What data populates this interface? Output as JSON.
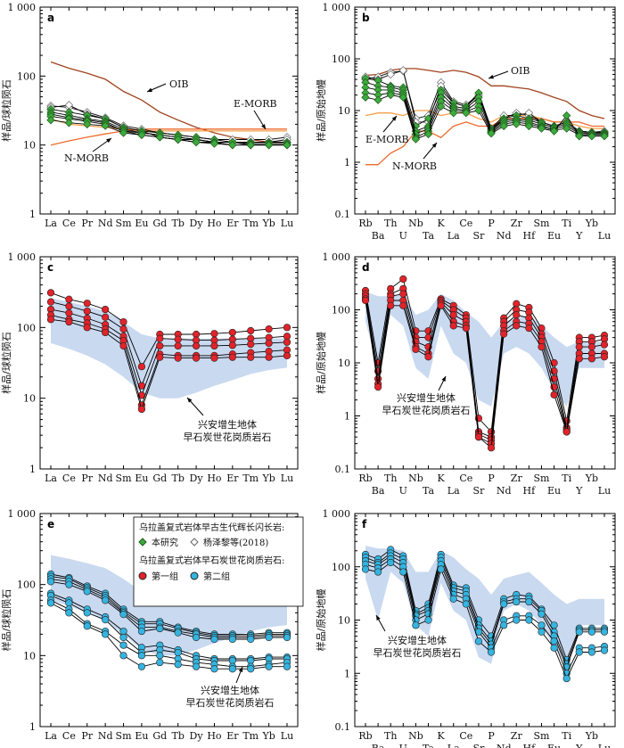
{
  "ylabel_chondrite": "样品/球粒陨石",
  "ylabel_mantle": "样品/原始地幔",
  "ree_elements": [
    "La",
    "Ce",
    "Pr",
    "Nd",
    "Sm",
    "Eu",
    "Gd",
    "Tb",
    "Dy",
    "Ho",
    "Er",
    "Tm",
    "Yb",
    "Lu"
  ],
  "tr_elements": [
    "Rb",
    "Ba",
    "Th",
    "U",
    "Nb",
    "Ta",
    "K",
    "La",
    "Ce",
    "Sr",
    "P",
    "Nd",
    "Zr",
    "Hf",
    "Sm",
    "Eu",
    "Ti",
    "Y",
    "Yb",
    "Lu"
  ],
  "colors": {
    "green": "#3dab3d",
    "red": "#e2232a",
    "cyan": "#35b4e0",
    "field": "#c9d9f0",
    "oib": "#a0421d",
    "emorb": "#f5a04a",
    "nmorb": "#ee6a2a"
  },
  "legend": {
    "title1": "乌拉盖复式岩体早古生代辉长闪长岩:",
    "this_study": "本研究",
    "yang": "杨泽黎等(2018)",
    "title2": "乌拉盖复式岩体早石炭世花岗质岩石:",
    "group1": "第一组",
    "group2": "第二组"
  },
  "field_label": [
    "兴安增生地体",
    "早石炭世花岗质岩石"
  ],
  "chart_data": [
    {
      "panel": "a",
      "type": "line",
      "ylabel": "样品/球粒陨石",
      "yscale": "log",
      "ylim": [
        1,
        1000
      ],
      "yticks": [
        "1",
        "10",
        "100",
        "1 000"
      ],
      "categories": [
        "La",
        "Ce",
        "Pr",
        "Nd",
        "Sm",
        "Eu",
        "Gd",
        "Tb",
        "Dy",
        "Ho",
        "Er",
        "Tm",
        "Yb",
        "Lu"
      ],
      "reference": [
        {
          "name": "OIB",
          "values": [
            160,
            130,
            110,
            90,
            60,
            45,
            30,
            23,
            18,
            15,
            13,
            12,
            11,
            11
          ]
        },
        {
          "name": "E-MORB",
          "values": [
            24,
            20,
            19,
            18,
            17,
            16,
            16,
            16,
            16,
            16,
            16,
            16,
            16,
            16
          ]
        },
        {
          "name": "N-MORB",
          "values": [
            10,
            11.5,
            13,
            14.5,
            16,
            17,
            17,
            17,
            17,
            17,
            17,
            17,
            17,
            17
          ]
        }
      ],
      "series_green": [
        [
          33,
          30,
          27,
          24,
          18,
          16,
          15,
          14,
          13,
          12,
          11,
          11,
          11,
          11
        ],
        [
          30,
          27,
          24,
          22,
          17,
          15,
          14,
          13,
          12,
          11,
          11,
          10.5,
          10.5,
          10.5
        ],
        [
          28,
          25,
          23,
          21,
          16,
          15,
          14,
          13,
          12,
          11,
          11,
          10,
          10,
          10
        ],
        [
          26,
          24,
          22,
          20,
          16,
          14,
          13,
          12,
          11,
          11,
          10,
          10,
          10,
          10
        ],
        [
          23,
          21,
          20,
          19,
          15,
          14,
          13,
          12,
          11,
          10.5,
          10,
          10,
          10,
          10
        ]
      ],
      "series_gray": [
        [
          37,
          35,
          30,
          25,
          19,
          17,
          15,
          14,
          13,
          12,
          12,
          12,
          12,
          13
        ],
        [
          35,
          38,
          28,
          24,
          18,
          16,
          13,
          12,
          12,
          11,
          11,
          11,
          11,
          12
        ]
      ]
    },
    {
      "panel": "b",
      "type": "line",
      "ylabel": "样品/原始地幔",
      "yscale": "log",
      "ylim": [
        0.1,
        1000
      ],
      "yticks": [
        "0.1",
        "1",
        "10",
        "100",
        "1 000"
      ],
      "categories": [
        "Rb",
        "Ba",
        "Th",
        "U",
        "Nb",
        "Ta",
        "K",
        "La",
        "Ce",
        "Sr",
        "P",
        "Nd",
        "Zr",
        "Hf",
        "Sm",
        "Eu",
        "Ti",
        "Y",
        "Yb",
        "Lu"
      ],
      "reference": [
        {
          "name": "OIB",
          "values": [
            48,
            50,
            60,
            65,
            65,
            60,
            55,
            60,
            55,
            45,
            30,
            30,
            28,
            26,
            22,
            18,
            15,
            10,
            8,
            7
          ]
        },
        {
          "name": "E-MORB",
          "values": [
            8,
            9,
            9,
            8,
            10,
            10,
            8,
            9,
            9,
            7,
            6,
            8,
            8,
            8,
            7,
            6,
            6,
            5,
            4.5,
            4.5
          ]
        },
        {
          "name": "N-MORB",
          "values": [
            0.9,
            0.9,
            1.5,
            2,
            4,
            4,
            3,
            5,
            6,
            5,
            5,
            7,
            7,
            7,
            7,
            6,
            6,
            6,
            5,
            5
          ]
        }
      ],
      "series_green": [
        [
          42,
          38,
          30,
          28,
          5,
          7,
          25,
          14,
          12,
          22,
          4.5,
          7,
          8,
          7,
          6,
          5,
          6,
          4,
          3.8,
          3.8
        ],
        [
          35,
          30,
          28,
          25,
          4,
          5,
          22,
          12,
          11,
          18,
          4.2,
          6.5,
          7,
          6.5,
          5.5,
          4.8,
          5.5,
          3.8,
          3.6,
          3.6
        ],
        [
          28,
          25,
          25,
          22,
          3.5,
          4.5,
          18,
          11,
          10,
          15,
          4,
          6,
          6.5,
          6,
          5,
          4.5,
          5,
          3.6,
          3.5,
          3.5
        ],
        [
          22,
          20,
          22,
          20,
          3,
          4,
          15,
          10,
          9.5,
          12,
          3.8,
          5.5,
          6,
          5.5,
          4.8,
          4.2,
          4.5,
          3.4,
          3.3,
          3.3
        ],
        [
          18,
          16,
          20,
          18,
          2.8,
          3.5,
          12,
          9,
          9,
          10,
          3.6,
          5,
          5.5,
          5,
          4.5,
          4,
          8,
          3.2,
          3.2,
          3.2
        ]
      ],
      "series_gray": [
        [
          40,
          45,
          55,
          58,
          7,
          8,
          35,
          15,
          13,
          20,
          4.2,
          7,
          9,
          8,
          6,
          5,
          6,
          4,
          3.8,
          3.8
        ],
        [
          45,
          40,
          50,
          60,
          6,
          6,
          30,
          14,
          12,
          20,
          4.5,
          8,
          8,
          9,
          6,
          5,
          6,
          4,
          3.8,
          4
        ]
      ]
    },
    {
      "panel": "c",
      "type": "line",
      "ylabel": "样品/球粒陨石",
      "yscale": "log",
      "ylim": [
        1,
        1000
      ],
      "yticks": [
        "1",
        "10",
        "100",
        "1 000"
      ],
      "categories": [
        "La",
        "Ce",
        "Pr",
        "Nd",
        "Sm",
        "Eu",
        "Gd",
        "Tb",
        "Dy",
        "Ho",
        "Er",
        "Tm",
        "Yb",
        "Lu"
      ],
      "field": {
        "upper": [
          260,
          230,
          200,
          170,
          120,
          80,
          70,
          70,
          70,
          70,
          70,
          70,
          70,
          70
        ],
        "lower": [
          60,
          50,
          40,
          30,
          20,
          12,
          10,
          10,
          12,
          15,
          18,
          22,
          25,
          27
        ]
      },
      "series_red": [
        [
          310,
          250,
          220,
          180,
          120,
          28,
          80,
          80,
          80,
          82,
          85,
          90,
          95,
          100
        ],
        [
          230,
          200,
          170,
          140,
          95,
          15,
          70,
          68,
          66,
          66,
          68,
          70,
          72,
          75
        ],
        [
          180,
          160,
          135,
          110,
          75,
          11,
          55,
          55,
          55,
          55,
          56,
          58,
          60,
          62
        ],
        [
          150,
          130,
          115,
          95,
          65,
          8,
          42,
          40,
          40,
          40,
          42,
          44,
          46,
          48
        ],
        [
          130,
          120,
          100,
          85,
          55,
          7,
          38,
          37,
          37,
          37,
          38,
          38,
          38,
          40
        ]
      ]
    },
    {
      "panel": "d",
      "type": "line",
      "ylabel": "样品/原始地幔",
      "yscale": "log",
      "ylim": [
        0.1,
        1000
      ],
      "yticks": [
        "0.1",
        "1",
        "10",
        "100",
        "1 000"
      ],
      "categories": [
        "Rb",
        "Ba",
        "Th",
        "U",
        "Nb",
        "Ta",
        "K",
        "La",
        "Ce",
        "Sr",
        "P",
        "Nd",
        "Zr",
        "Hf",
        "Sm",
        "Eu",
        "Ti",
        "Y",
        "Yb",
        "Lu"
      ],
      "field": {
        "upper": [
          220,
          180,
          180,
          200,
          80,
          100,
          200,
          150,
          90,
          60,
          30,
          60,
          70,
          80,
          50,
          30,
          20,
          25,
          25,
          25
        ],
        "lower": [
          60,
          8,
          80,
          50,
          8,
          5,
          50,
          15,
          10,
          2,
          1.5,
          15,
          20,
          15,
          8,
          3,
          1.5,
          8,
          8,
          8
        ]
      },
      "series_red": [
        [
          230,
          10,
          250,
          380,
          40,
          40,
          160,
          120,
          80,
          0.9,
          0.5,
          70,
          130,
          110,
          45,
          10,
          0.8,
          30,
          30,
          33
        ],
        [
          200,
          7,
          200,
          250,
          30,
          30,
          150,
          100,
          70,
          0.5,
          0.4,
          60,
          100,
          90,
          35,
          7,
          0.6,
          25,
          25,
          28
        ],
        [
          180,
          5,
          180,
          200,
          25,
          20,
          140,
          80,
          60,
          0.45,
          0.35,
          50,
          80,
          70,
          30,
          5,
          0.55,
          20,
          20,
          22
        ],
        [
          160,
          4,
          150,
          150,
          20,
          15,
          130,
          60,
          50,
          0.4,
          0.3,
          40,
          60,
          55,
          25,
          3.5,
          0.5,
          15,
          15,
          15
        ],
        [
          150,
          3.5,
          120,
          120,
          18,
          13,
          120,
          50,
          45,
          0.4,
          0.25,
          35,
          50,
          45,
          20,
          2.5,
          0.5,
          12,
          12,
          13
        ]
      ]
    },
    {
      "panel": "e",
      "type": "line",
      "ylabel": "样品/球粒陨石",
      "yscale": "log",
      "ylim": [
        1,
        1000
      ],
      "yticks": [
        "1",
        "10",
        "100",
        "1 000"
      ],
      "categories": [
        "La",
        "Ce",
        "Pr",
        "Nd",
        "Sm",
        "Eu",
        "Gd",
        "Tb",
        "Dy",
        "Ho",
        "Er",
        "Tm",
        "Yb",
        "Lu"
      ],
      "field": {
        "upper": [
          260,
          230,
          200,
          170,
          120,
          80,
          70,
          70,
          70,
          70,
          70,
          70,
          70,
          70
        ],
        "lower": [
          60,
          50,
          40,
          30,
          20,
          12,
          10,
          10,
          12,
          15,
          18,
          22,
          25,
          27
        ]
      },
      "series_cyan": [
        [
          140,
          125,
          95,
          75,
          45,
          30,
          30,
          25,
          22,
          20,
          20,
          20,
          21,
          21
        ],
        [
          130,
          120,
          90,
          70,
          42,
          28,
          28,
          24,
          21,
          19,
          19,
          19,
          20,
          20
        ],
        [
          120,
          110,
          85,
          65,
          40,
          25,
          25,
          22,
          20,
          18,
          18,
          18,
          19,
          19
        ],
        [
          110,
          100,
          80,
          60,
          38,
          22,
          24,
          21,
          18,
          17,
          17,
          17,
          18,
          18
        ],
        [
          75,
          60,
          45,
          35,
          22,
          13,
          14,
          12,
          10,
          9,
          9,
          9,
          9.5,
          9.5
        ],
        [
          70,
          55,
          40,
          32,
          18,
          11,
          12,
          11,
          9,
          8.5,
          8.5,
          8.5,
          9,
          9
        ],
        [
          60,
          45,
          28,
          22,
          14,
          10,
          10,
          9,
          8,
          7.5,
          7,
          7,
          7.5,
          8
        ],
        [
          55,
          40,
          26,
          20,
          10,
          7,
          8,
          7.5,
          7,
          6.5,
          6.5,
          6.5,
          7,
          7
        ]
      ]
    },
    {
      "panel": "f",
      "type": "line",
      "ylabel": "样品/原始地幔",
      "yscale": "log",
      "ylim": [
        0.1,
        1000
      ],
      "yticks": [
        "0.1",
        "1",
        "10",
        "100",
        "1 000"
      ],
      "categories": [
        "Rb",
        "Ba",
        "Th",
        "U",
        "Nb",
        "Ta",
        "K",
        "La",
        "Ce",
        "Sr",
        "P",
        "Nd",
        "Zr",
        "Hf",
        "Sm",
        "Eu",
        "Ti",
        "Y",
        "Yb",
        "Lu"
      ],
      "field": {
        "upper": [
          250,
          220,
          220,
          200,
          80,
          80,
          200,
          150,
          90,
          60,
          30,
          60,
          70,
          80,
          50,
          30,
          20,
          25,
          25,
          25
        ],
        "lower": [
          60,
          10,
          80,
          50,
          8,
          5,
          50,
          15,
          10,
          2,
          1.5,
          15,
          20,
          15,
          8,
          3,
          1.5,
          8,
          8,
          8
        ]
      },
      "series_cyan": [
        [
          170,
          140,
          210,
          160,
          15,
          20,
          170,
          45,
          40,
          10,
          5,
          25,
          30,
          28,
          16,
          8,
          1.8,
          7,
          7,
          7
        ],
        [
          150,
          120,
          180,
          140,
          13,
          17,
          150,
          40,
          35,
          8,
          4,
          22,
          25,
          25,
          15,
          6,
          1.5,
          6.5,
          6.5,
          6.5
        ],
        [
          130,
          110,
          160,
          120,
          12,
          15,
          130,
          35,
          30,
          7,
          3.5,
          20,
          22,
          22,
          13,
          5,
          1.3,
          6,
          6,
          6
        ],
        [
          110,
          95,
          140,
          100,
          10,
          13,
          110,
          30,
          25,
          6,
          3,
          10,
          12,
          12,
          8,
          4,
          1.0,
          3,
          3,
          3.2
        ],
        [
          90,
          80,
          120,
          80,
          8,
          10,
          90,
          25,
          20,
          4,
          2.5,
          8,
          10,
          10,
          6,
          3,
          0.8,
          2.5,
          2.5,
          2.7
        ]
      ]
    }
  ]
}
